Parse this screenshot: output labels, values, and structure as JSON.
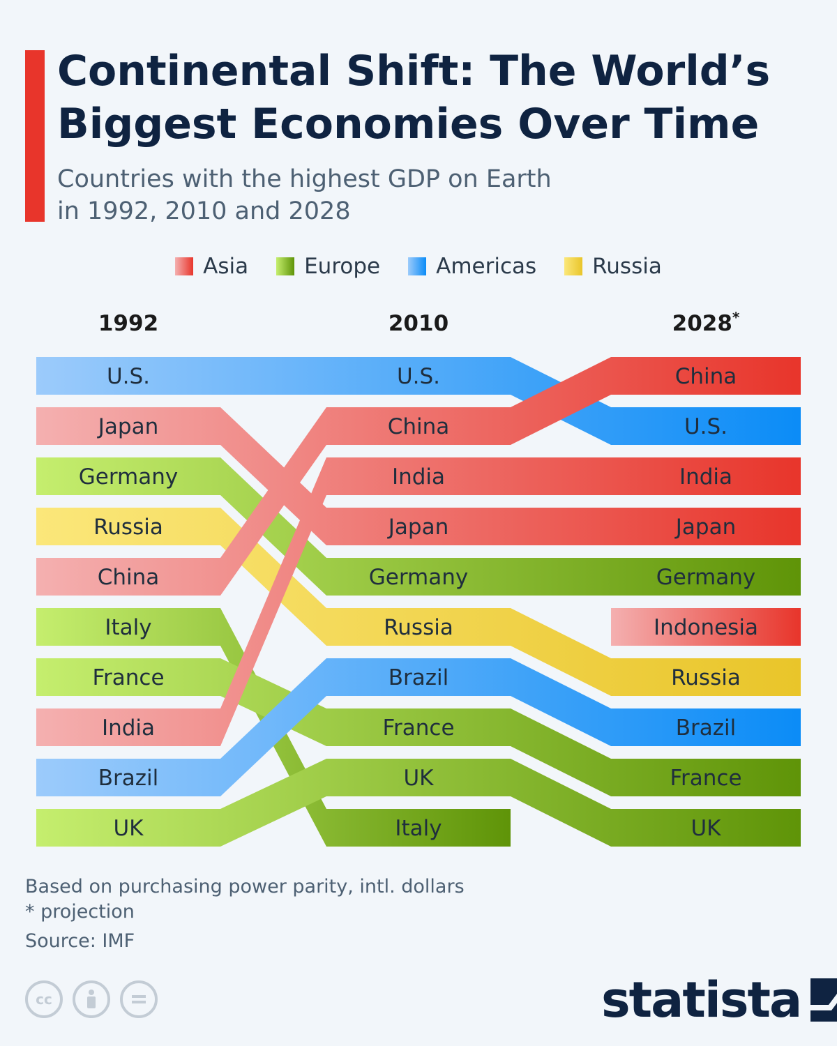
{
  "title": "Continental Shift: The World’s Biggest Economies Over Time",
  "subtitle_line1": "Countries with the highest GDP on Earth",
  "subtitle_line2": "in 1992, 2010 and 2028",
  "colors": {
    "accent": "#e8352b",
    "Asia": [
      "#f4b0b0",
      "#e8352b"
    ],
    "Europe": [
      "#c5ee6e",
      "#5f9408"
    ],
    "Americas": [
      "#9ccbfb",
      "#0b8cf7"
    ],
    "Russia": [
      "#fbe77a",
      "#e9c52a"
    ]
  },
  "legend": [
    {
      "label": "Asia",
      "key": "Asia"
    },
    {
      "label": "Europe",
      "key": "Europe"
    },
    {
      "label": "Americas",
      "key": "Americas"
    },
    {
      "label": "Russia",
      "key": "Russia"
    }
  ],
  "chart_data": {
    "type": "bump",
    "x": [
      "1992",
      "2010",
      "2028"
    ],
    "x_marks": [
      "",
      "",
      "*"
    ],
    "y": "rank",
    "series": [
      {
        "name": "U.S.",
        "region": "Americas",
        "ranks": [
          1,
          1,
          2
        ]
      },
      {
        "name": "Japan",
        "region": "Asia",
        "ranks": [
          2,
          4,
          4
        ]
      },
      {
        "name": "Germany",
        "region": "Europe",
        "ranks": [
          3,
          5,
          5
        ]
      },
      {
        "name": "Russia",
        "region": "Russia",
        "ranks": [
          4,
          6,
          7
        ]
      },
      {
        "name": "China",
        "region": "Asia",
        "ranks": [
          5,
          2,
          1
        ]
      },
      {
        "name": "Italy",
        "region": "Europe",
        "ranks": [
          6,
          10,
          null
        ]
      },
      {
        "name": "France",
        "region": "Europe",
        "ranks": [
          7,
          8,
          9
        ]
      },
      {
        "name": "India",
        "region": "Asia",
        "ranks": [
          8,
          3,
          3
        ]
      },
      {
        "name": "Brazil",
        "region": "Americas",
        "ranks": [
          9,
          7,
          8
        ]
      },
      {
        "name": "UK",
        "region": "Europe",
        "ranks": [
          10,
          9,
          10
        ]
      },
      {
        "name": "Indonesia",
        "region": "Asia",
        "ranks": [
          null,
          null,
          6
        ]
      }
    ]
  },
  "footnote_1": "Based on purchasing power parity, intl. dollars",
  "footnote_2": "* projection",
  "source": "Source: IMF",
  "cc_icons": [
    "cc-icon",
    "attribution-icon",
    "no-derivatives-icon"
  ],
  "logo": "statista"
}
